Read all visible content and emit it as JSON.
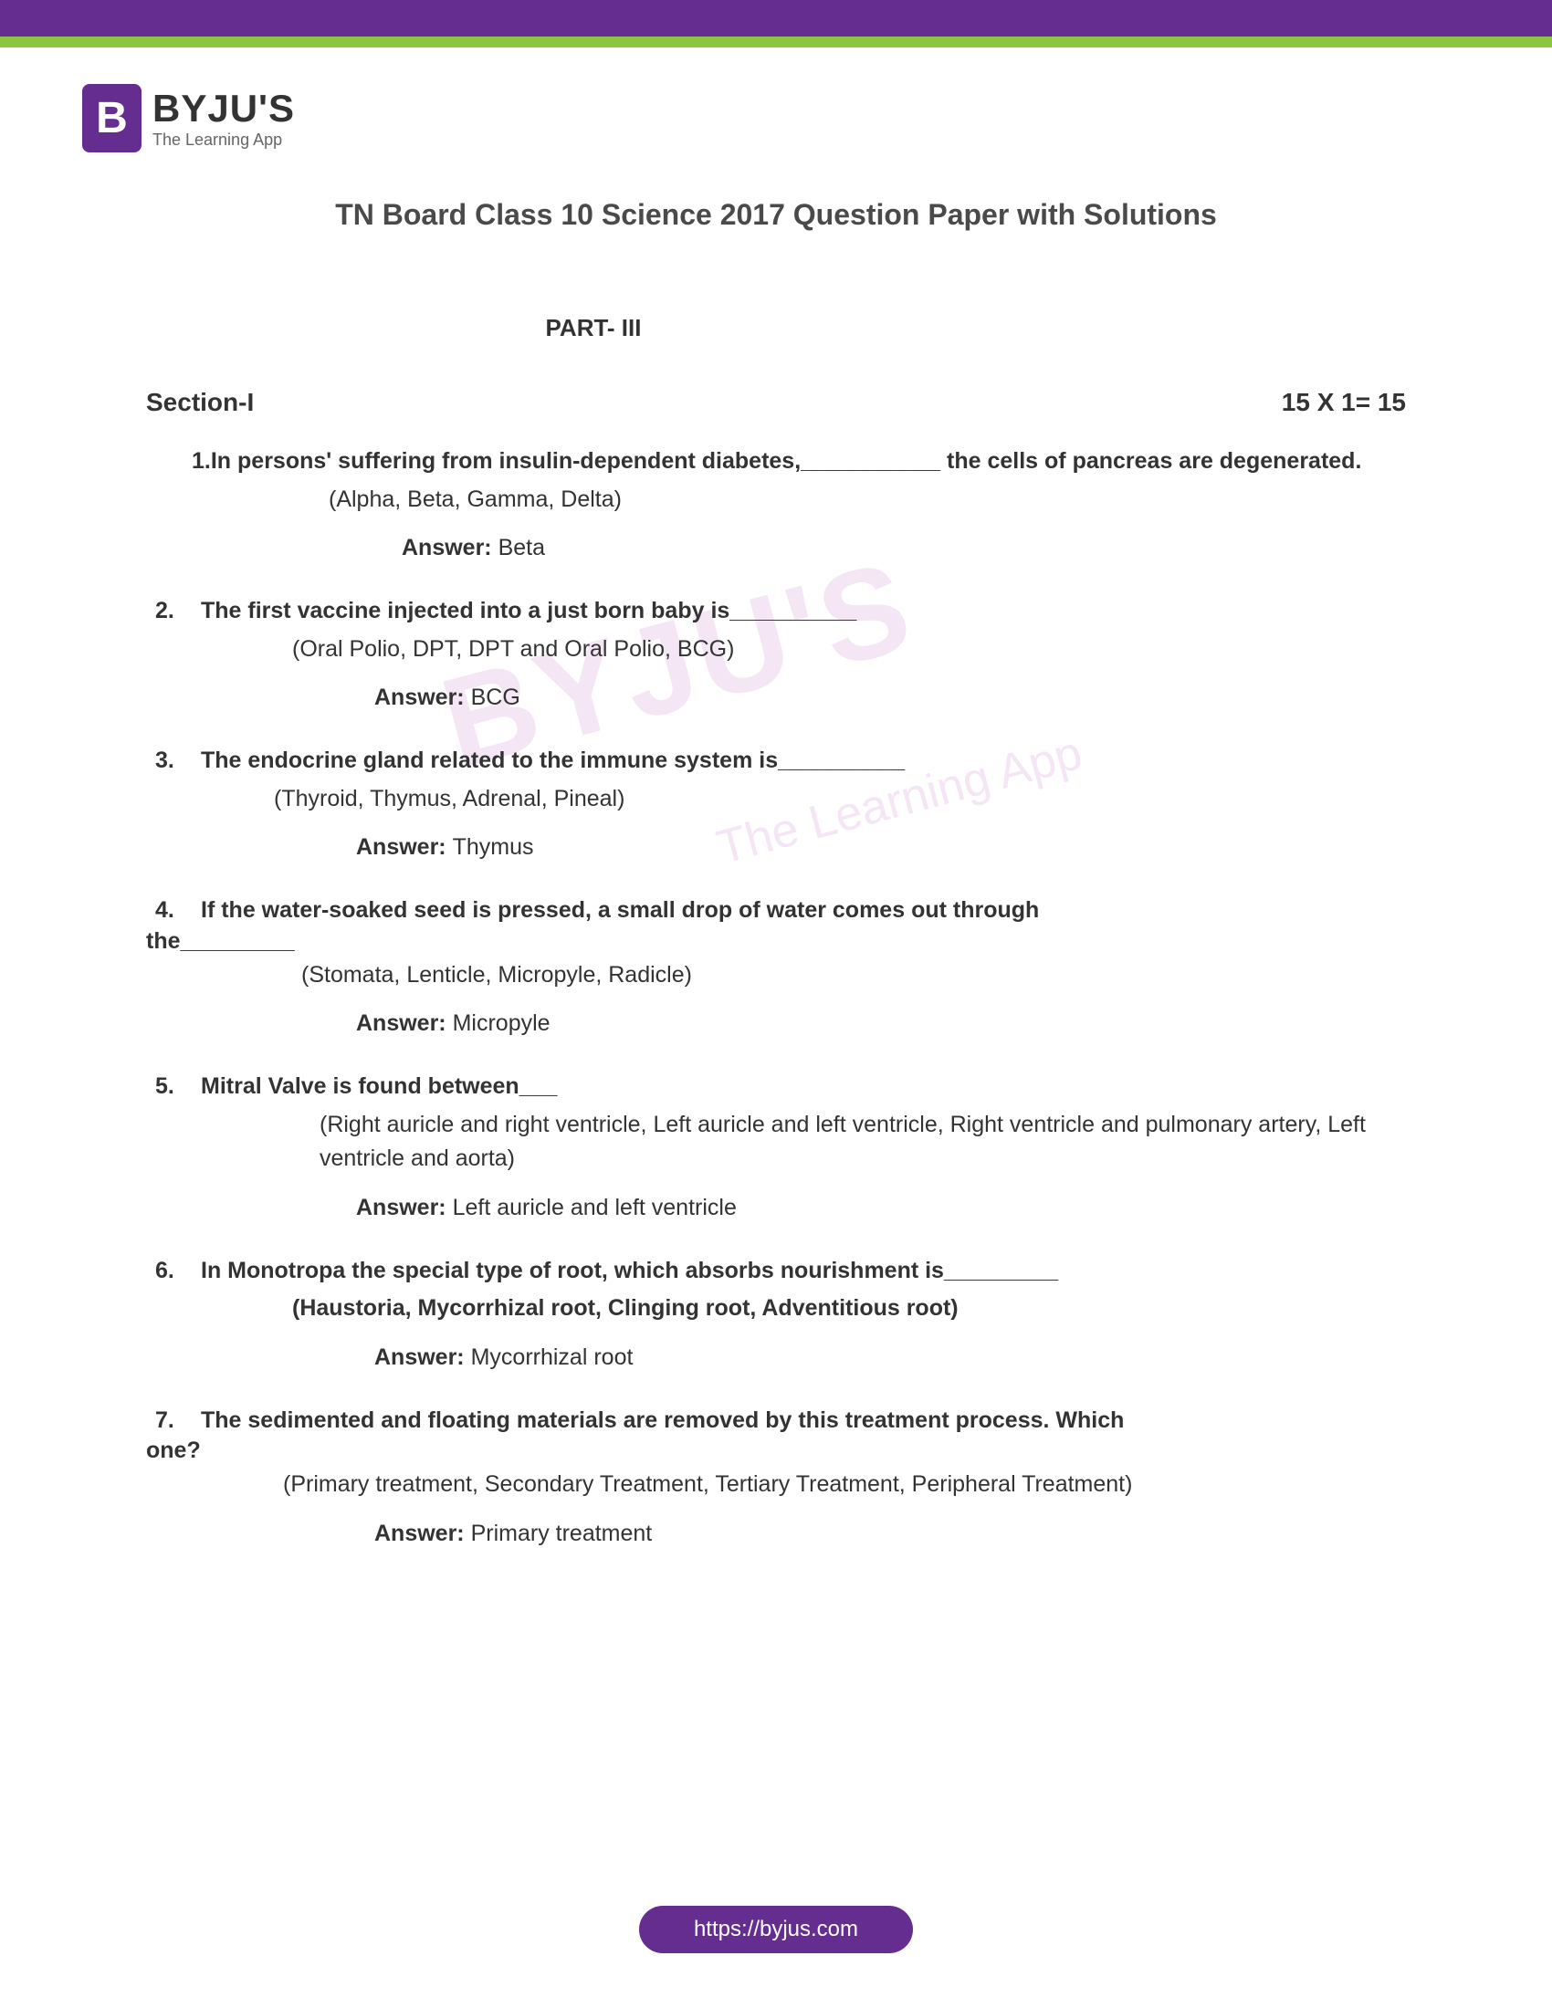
{
  "branding": {
    "logo_letter": "B",
    "logo_main": "BYJU'S",
    "logo_sub": "The Learning App",
    "watermark_main": "BYJU'S",
    "watermark_sub": "The Learning App"
  },
  "colors": {
    "brand_purple": "#662d91",
    "brand_green": "#8cc63f",
    "text_dark": "#333333",
    "text_gray": "#666666"
  },
  "header": {
    "title": "TN Board Class 10 Science 2017 Question Paper with Solutions",
    "part": "PART- III",
    "section_label": "Section-I",
    "marks": "15 X 1= 15"
  },
  "questions": [
    {
      "num": "1.",
      "text": "In persons' suffering from insulin-dependent diabetes,___________ the cells of pancreas are degenerated.",
      "options": "(Alpha, Beta, Gamma, Delta)",
      "options_bold": false,
      "answer": "Beta",
      "answer_pad": 280,
      "opt_pad": 200,
      "first": true
    },
    {
      "num": "2.",
      "text": "The first vaccine injected into a just born baby is__________",
      "options": "(Oral Polio, DPT, DPT and Oral Polio, BCG)",
      "options_bold": false,
      "answer": "BCG",
      "answer_pad": 250,
      "opt_pad": 160
    },
    {
      "num": "3.",
      "text": "The endocrine gland related to the immune system is__________",
      "options": "(Thyroid, Thymus, Adrenal, Pineal)",
      "options_bold": false,
      "answer": "Thymus",
      "answer_pad": 230,
      "opt_pad": 140
    },
    {
      "num": "4.",
      "text_prefix": "If the water-soaked seed is pressed, a small drop of water comes out through",
      "text_suffix": "the_________",
      "options": "(Stomata, Lenticle, Micropyle, Radicle)",
      "options_bold": false,
      "answer": " Micropyle",
      "answer_pad": 230,
      "opt_pad": 170,
      "wrap": true
    },
    {
      "num": "5.",
      "text": "Mitral Valve is found between___",
      "options": "(Right auricle and right ventricle, Left auricle and left ventricle, Right ventricle and pulmonary artery, Left ventricle and aorta)",
      "options_bold": false,
      "answer": "Left auricle and left ventricle",
      "answer_pad": 230,
      "opt_pad": 190
    },
    {
      "num": "6.",
      "text": "In Monotropa the special type of root, which absorbs nourishment is_________",
      "options": "(Haustoria, Mycorrhizal root, Clinging root, Adventitious root)",
      "options_bold": true,
      "answer": "Mycorrhizal root",
      "answer_pad": 250,
      "opt_pad": 160
    },
    {
      "num": "7.",
      "text_prefix": "The sedimented and floating materials are removed by this treatment process. Which",
      "text_suffix": "one?",
      "options": "(Primary treatment, Secondary Treatment, Tertiary Treatment, Peripheral Treatment)",
      "options_bold": false,
      "answer": "Primary treatment",
      "answer_pad": 250,
      "opt_pad": 150,
      "wrap": true
    }
  ],
  "footer": {
    "url": "https://byjus.com"
  },
  "labels": {
    "answer": "Answer: "
  }
}
